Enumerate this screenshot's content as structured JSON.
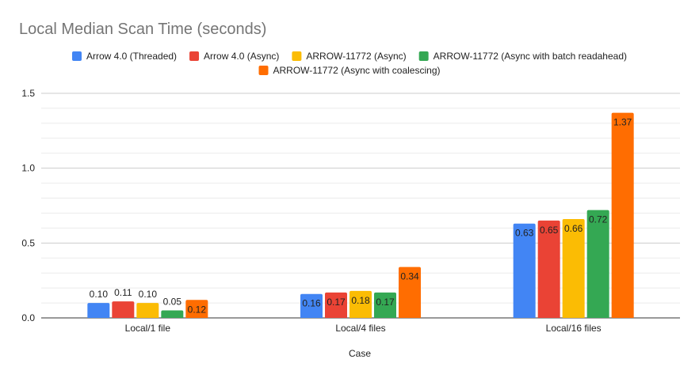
{
  "chart_data": {
    "type": "bar",
    "title": "Local Median Scan Time (seconds)",
    "xlabel": "Case",
    "ylabel": "",
    "ylim": [
      0,
      1.5
    ],
    "yticks": [
      "0.0",
      "0.5",
      "1.0",
      "1.5"
    ],
    "grid": true,
    "legend_position": "top",
    "categories": [
      "Local/1 file",
      "Local/4 files",
      "Local/16 files"
    ],
    "series": [
      {
        "name": "Arrow 4.0 (Threaded)",
        "color": "#4285F4",
        "values": [
          0.1,
          0.16,
          0.63
        ],
        "labels": [
          "0.10",
          "0.16",
          "0.63"
        ]
      },
      {
        "name": "Arrow 4.0 (Async)",
        "color": "#EA4335",
        "values": [
          0.11,
          0.17,
          0.65
        ],
        "labels": [
          "0.11",
          "0.17",
          "0.65"
        ]
      },
      {
        "name": "ARROW-11772 (Async)",
        "color": "#FBBC04",
        "values": [
          0.1,
          0.18,
          0.66
        ],
        "labels": [
          "0.10",
          "0.18",
          "0.66"
        ]
      },
      {
        "name": "ARROW-11772 (Async with batch readahead)",
        "color": "#34A853",
        "values": [
          0.05,
          0.17,
          0.72
        ],
        "labels": [
          "0.05",
          "0.17",
          "0.72"
        ]
      },
      {
        "name": "ARROW-11772 (Async with coalescing)",
        "color": "#FF6D01",
        "values": [
          0.12,
          0.34,
          1.37
        ],
        "labels": [
          "0.12",
          "0.34",
          "1.37"
        ]
      }
    ]
  }
}
